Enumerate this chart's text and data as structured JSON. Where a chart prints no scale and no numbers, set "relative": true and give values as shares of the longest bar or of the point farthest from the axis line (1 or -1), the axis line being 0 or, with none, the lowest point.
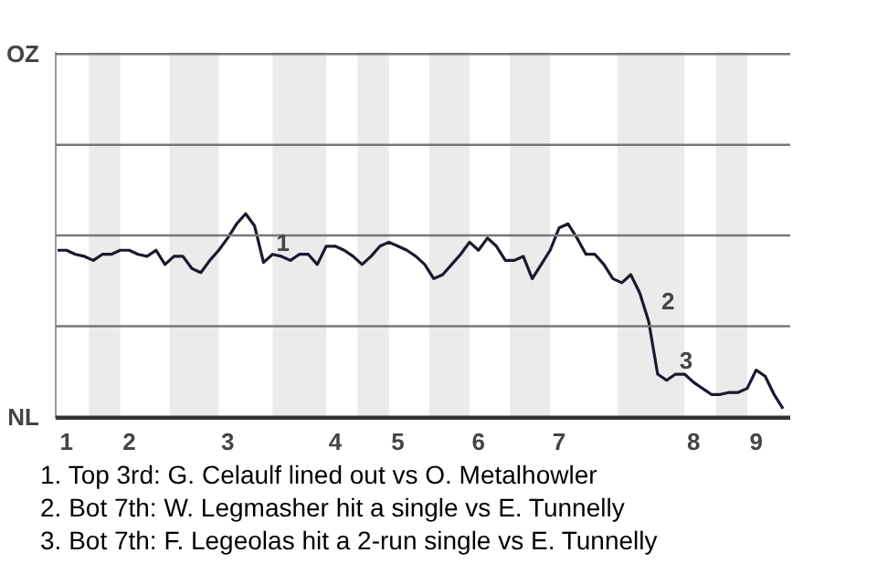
{
  "chart_data": {
    "type": "line",
    "relative": true,
    "categories": [
      null,
      "1",
      null,
      null,
      null,
      null,
      null,
      null,
      "2",
      null,
      null,
      null,
      null,
      null,
      null,
      null,
      null,
      null,
      null,
      "3",
      null,
      null,
      null,
      null,
      null,
      null,
      null,
      null,
      null,
      null,
      null,
      "4",
      null,
      null,
      null,
      null,
      null,
      null,
      "5",
      null,
      null,
      null,
      null,
      null,
      null,
      null,
      null,
      "6",
      null,
      null,
      null,
      null,
      null,
      null,
      null,
      null,
      "7",
      null,
      null,
      null,
      null,
      null,
      null,
      null,
      null,
      null,
      null,
      null,
      null,
      null,
      null,
      "8",
      null,
      null,
      null,
      null,
      null,
      null,
      "9",
      null,
      null,
      null
    ],
    "series": [
      {
        "color": "#1a1a2e",
        "values": [
          0.82,
          0.82,
          0.8,
          0.79,
          0.77,
          0.8,
          0.8,
          0.82,
          0.82,
          0.8,
          0.79,
          0.82,
          0.75,
          0.79,
          0.79,
          0.73,
          0.71,
          0.77,
          0.82,
          0.88,
          0.95,
          1,
          0.94,
          0.76,
          0.8,
          0.79,
          0.77,
          0.8,
          0.8,
          0.75,
          0.84,
          0.84,
          0.82,
          0.79,
          0.75,
          0.79,
          0.84,
          0.86,
          0.84,
          0.82,
          0.79,
          0.75,
          0.68,
          0.7,
          0.75,
          0.8,
          0.86,
          0.82,
          0.88,
          0.84,
          0.77,
          0.77,
          0.79,
          0.68,
          0.75,
          0.82,
          0.93,
          0.95,
          0.88,
          0.8,
          0.8,
          0.75,
          0.68,
          0.66,
          0.7,
          0.61,
          0.47,
          0.21,
          0.18,
          0.21,
          0.21,
          0.17,
          0.14,
          0.11,
          0.11,
          0.12,
          0.12,
          0.14,
          0.23,
          0.2,
          0.11,
          0.04
        ]
      }
    ],
    "ref_lines": [
      {
        "axis": "y",
        "value": 0,
        "label": "NL",
        "color": "#333333"
      },
      {
        "axis": "y",
        "value": 0.446,
        "label": null,
        "color": "#777777"
      },
      {
        "axis": "y",
        "value": 0.893,
        "label": null,
        "color": "#777777"
      },
      {
        "axis": "y",
        "value": 1.339,
        "label": null,
        "color": "#777777"
      },
      {
        "axis": "y",
        "value": 1.786,
        "label": "OZ",
        "color": "#777777"
      }
    ],
    "line_style": "solid",
    "annotations": [
      {
        "text": "1",
        "y": 0.76
      },
      {
        "text": "2",
        "y": 0.47
      },
      {
        "text": "3",
        "y": 0.18
      },
      "1. Top 3rd: G. Celaulf lined out vs O. Metalhowler",
      "2. Bot 7th: W. Legmasher hit a single vs E. Tunnelly",
      "3. Bot 7th: F. Legeolas hit a 2-run single vs E. Tunnelly"
    ]
  }
}
